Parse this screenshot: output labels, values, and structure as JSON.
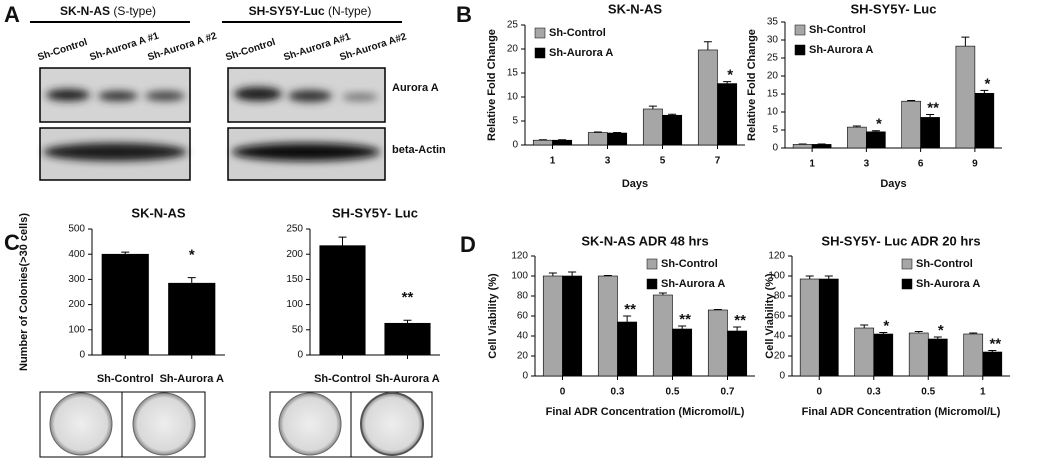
{
  "panel_labels": [
    "A",
    "B",
    "C",
    "D"
  ],
  "blots": [
    {
      "cell_line": "SK-N-AS",
      "subtype": "(S-type)",
      "lanes": [
        "Sh-Control",
        "Sh-Aurora A #1",
        "Sh-Aurora A #2"
      ]
    },
    {
      "cell_line": "SH-SY5Y-Luc",
      "subtype": "(N-type)",
      "lanes": [
        "Sh-Control",
        "Sh-Aurora A#1",
        "Sh-Aurora A#2"
      ]
    }
  ],
  "blot_rows": [
    "Aurora A",
    "beta-Actin"
  ],
  "chart_data": [
    {
      "type": "bar",
      "title": "SK-N-AS",
      "y_label": "Relative Fold Change",
      "x_label": "Days",
      "categories": [
        "1",
        "3",
        "5",
        "7"
      ],
      "ylim": [
        0,
        25
      ],
      "yticks": [
        0,
        5,
        10,
        15,
        20,
        25
      ],
      "legend": "upper-left",
      "series": [
        {
          "name": "Sh-Control",
          "color": "#a6a6a6",
          "values": [
            1,
            2.6,
            7.5,
            19.8
          ],
          "errors": [
            0.1,
            0.1,
            0.6,
            1.7
          ]
        },
        {
          "name": "Sh-Aurora A",
          "color": "#000000",
          "values": [
            1,
            2.5,
            6.2,
            12.8
          ],
          "errors": [
            0.1,
            0.1,
            0.2,
            0.4
          ],
          "markers": [
            null,
            null,
            null,
            "*"
          ]
        }
      ]
    },
    {
      "type": "bar",
      "title": "SH-SY5Y- Luc",
      "y_label": "Relative Fold Change",
      "x_label": "Days",
      "categories": [
        "1",
        "3",
        "6",
        "9"
      ],
      "ylim": [
        0,
        35
      ],
      "yticks": [
        0,
        5,
        10,
        15,
        20,
        25,
        30,
        35
      ],
      "legend": "upper-left",
      "series": [
        {
          "name": "Sh-Control",
          "color": "#a6a6a6",
          "values": [
            1,
            5.8,
            13,
            28.3
          ],
          "errors": [
            0.1,
            0.3,
            0.2,
            2.5
          ]
        },
        {
          "name": "Sh-Aurora A",
          "color": "#000000",
          "values": [
            1,
            4.5,
            8.5,
            15.2
          ],
          "errors": [
            0.1,
            0.3,
            0.8,
            0.8
          ],
          "markers": [
            null,
            "*",
            "**",
            "*"
          ]
        }
      ]
    },
    {
      "type": "bar",
      "title": "SK-N-AS",
      "y_label": "Number of Colonies(>30 cells)",
      "categories": [
        "Sh-Control",
        "Sh-Aurora A"
      ],
      "ylim": [
        0,
        500
      ],
      "yticks": [
        0,
        100,
        200,
        300,
        400,
        500
      ],
      "color": "#000000",
      "values": [
        400,
        285
      ],
      "errors": [
        8,
        22
      ],
      "markers": [
        null,
        "*"
      ]
    },
    {
      "type": "bar",
      "title": "SH-SY5Y- Luc",
      "categories": [
        "Sh-Control",
        "Sh-Aurora A"
      ],
      "ylim": [
        0,
        250
      ],
      "yticks": [
        0,
        50,
        100,
        150,
        200,
        250
      ],
      "color": "#000000",
      "values": [
        217,
        63
      ],
      "errors": [
        17,
        6
      ],
      "markers": [
        null,
        "**"
      ]
    },
    {
      "type": "bar",
      "title": "SK-N-AS ADR 48 hrs",
      "y_label": "Cell Viability (%)",
      "x_label": "Final ADR Concentration (Micromol/L)",
      "categories": [
        "0",
        "0.3",
        "0.5",
        "0.7"
      ],
      "ylim": [
        0,
        120
      ],
      "yticks": [
        0,
        20,
        40,
        60,
        80,
        100,
        120
      ],
      "legend": "upper-right",
      "series": [
        {
          "name": "Sh-Control",
          "color": "#a6a6a6",
          "values": [
            100,
            100,
            81,
            66
          ],
          "errors": [
            3,
            0.5,
            2,
            0.5
          ]
        },
        {
          "name": "Sh-Aurora A",
          "color": "#000000",
          "values": [
            100,
            54,
            47,
            45
          ],
          "errors": [
            4,
            6,
            3,
            4
          ],
          "markers": [
            null,
            "**",
            "**",
            "**"
          ]
        }
      ]
    },
    {
      "type": "bar",
      "title": "SH-SY5Y- Luc ADR 20 hrs",
      "y_label": "Cell Viability (%)",
      "x_label": "Final ADR Concentration (Micromol/L)",
      "categories": [
        "0",
        "0.3",
        "0.5",
        "1"
      ],
      "ylim": [
        0,
        120
      ],
      "yticks": [
        0,
        20,
        40,
        60,
        80,
        100,
        120
      ],
      "legend": "upper-right",
      "series": [
        {
          "name": "Sh-Control",
          "color": "#a6a6a6",
          "values": [
            97,
            48,
            43,
            42
          ],
          "errors": [
            3,
            3,
            1.5,
            1
          ]
        },
        {
          "name": "Sh-Aurora A",
          "color": "#000000",
          "values": [
            97,
            42,
            37,
            24
          ],
          "errors": [
            3,
            1.5,
            2,
            1.5
          ],
          "markers": [
            null,
            "*",
            "*",
            "**"
          ]
        }
      ]
    }
  ]
}
